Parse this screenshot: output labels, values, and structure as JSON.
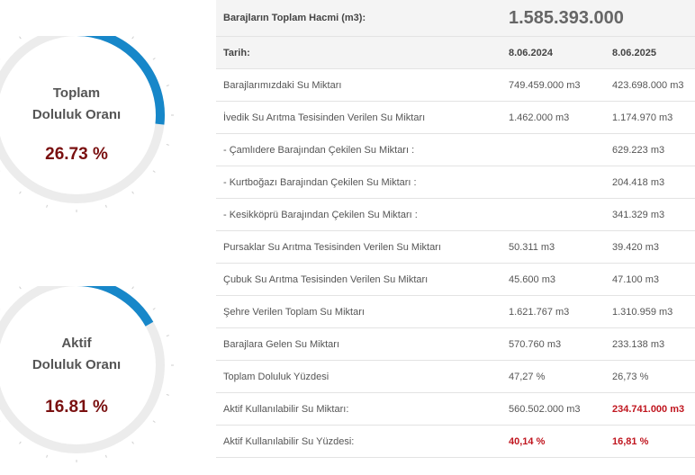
{
  "gauges": [
    {
      "title_line1": "Toplam",
      "title_line2": "Doluluk Oranı",
      "value_text": "26.73 %",
      "fraction": 0.2673,
      "color": "#1787c9",
      "track_color": "#ececec"
    },
    {
      "title_line1": "Aktif",
      "title_line2": "Doluluk Oranı",
      "value_text": "16.81 %",
      "fraction": 0.1681,
      "color": "#1787c9",
      "track_color": "#ececec"
    }
  ],
  "table": {
    "header_label": "Barajların Toplam Hacmi (m3):",
    "header_value": "1.585.393.000",
    "date_label": "Tarih:",
    "date_1": "8.06.2024",
    "date_2": "8.06.2025",
    "rows": [
      {
        "label": "Barajlarımızdaki Su Miktarı",
        "v1": "749.459.000 m3",
        "v2": "423.698.000 m3"
      },
      {
        "label": "İvedik Su Arıtma Tesisinden Verilen Su Miktarı",
        "v1": "1.462.000 m3",
        "v2": "1.174.970 m3"
      },
      {
        "label": "- Çamlıdere Barajından Çekilen Su Miktarı :",
        "v1": "",
        "v2": "629.223 m3"
      },
      {
        "label": "- Kurtboğazı Barajından Çekilen Su Miktarı :",
        "v1": "",
        "v2": "204.418 m3"
      },
      {
        "label": "- Kesikköprü Barajından Çekilen Su Miktarı :",
        "v1": "",
        "v2": "341.329 m3"
      },
      {
        "label": "Pursaklar Su Arıtma Tesisinden Verilen Su Miktarı",
        "v1": "50.311 m3",
        "v2": "39.420 m3"
      },
      {
        "label": "Çubuk Su Arıtma Tesisinden Verilen Su Miktarı",
        "v1": "45.600 m3",
        "v2": "47.100 m3"
      },
      {
        "label": "Şehre Verilen Toplam Su Miktarı",
        "v1": "1.621.767 m3",
        "v2": "1.310.959 m3"
      },
      {
        "label": "Barajlara Gelen Su Miktarı",
        "v1": "570.760 m3",
        "v2": "233.138 m3"
      },
      {
        "label": "Toplam Doluluk Yüzdesi",
        "v1": "47,27 %",
        "v2": "26,73 %"
      },
      {
        "label": "Aktif Kullanılabilir Su Miktarı:",
        "v1": "560.502.000 m3",
        "v2": "234.741.000 m3"
      },
      {
        "label": "Aktif Kullanılabilir Su Yüzdesi:",
        "v1": "40,14 %",
        "v2": "16,81 %"
      }
    ]
  }
}
